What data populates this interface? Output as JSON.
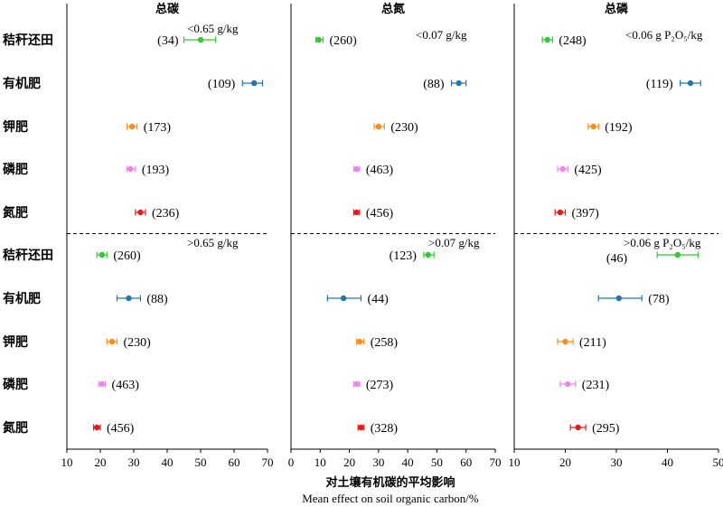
{
  "chart_data": {
    "type": "forest-plot",
    "xlabel_cn": "对土壤有机碳的平均影响",
    "xlabel_en": "Mean effect on soil organic carbon/%",
    "row_labels": [
      "秸秆还田",
      "有机肥",
      "钾肥",
      "磷肥",
      "氮肥",
      "秸秆还田",
      "有机肥",
      "钾肥",
      "磷肥",
      "氮肥"
    ],
    "colors": {
      "秸秆还田": "#2ecc2e",
      "有机肥": "#1f77b4",
      "钾肥": "#ff8c1a",
      "磷肥": "#ee82ee",
      "氮肥": "#e41a1c"
    },
    "panels": [
      {
        "title": "总碳",
        "xlim": [
          10,
          70
        ],
        "ticks": [
          10,
          20,
          30,
          40,
          50,
          60,
          70
        ],
        "threshold_top": "<0.65 g/kg",
        "threshold_bottom": ">0.65 g/kg",
        "rows": [
          {
            "mean": 50,
            "lo": 45,
            "hi": 54.5,
            "n": "(34)"
          },
          {
            "mean": 66,
            "lo": 62.5,
            "hi": 68.5,
            "n": "(109)"
          },
          {
            "mean": 29.5,
            "lo": 28,
            "hi": 31,
            "n": "(173)"
          },
          {
            "mean": 29,
            "lo": 28,
            "hi": 30.5,
            "n": "(193)"
          },
          {
            "mean": 32,
            "lo": 30.5,
            "hi": 33.5,
            "n": "(236)"
          },
          {
            "mean": 20.5,
            "lo": 19,
            "hi": 22,
            "n": "(260)"
          },
          {
            "mean": 28.5,
            "lo": 25,
            "hi": 32,
            "n": "(88)"
          },
          {
            "mean": 23.5,
            "lo": 22,
            "hi": 25,
            "n": "(230)"
          },
          {
            "mean": 20.5,
            "lo": 19.5,
            "hi": 21.5,
            "n": "(463)"
          },
          {
            "mean": 19,
            "lo": 18,
            "hi": 20,
            "n": "(456)"
          }
        ]
      },
      {
        "title": "总氮",
        "xlim": [
          0,
          70
        ],
        "ticks": [
          0,
          10,
          20,
          30,
          40,
          50,
          60,
          70
        ],
        "threshold_top": "<0.07 g/kg",
        "threshold_bottom": ">0.07 g/kg",
        "rows": [
          {
            "mean": 9.5,
            "lo": 8.5,
            "hi": 11,
            "n": "(260)"
          },
          {
            "mean": 57.5,
            "lo": 55,
            "hi": 60,
            "n": "(88)"
          },
          {
            "mean": 30,
            "lo": 28.5,
            "hi": 32,
            "n": "(230)"
          },
          {
            "mean": 22.5,
            "lo": 21.5,
            "hi": 23.5,
            "n": "(463)"
          },
          {
            "mean": 22.5,
            "lo": 21.5,
            "hi": 23.5,
            "n": "(456)"
          },
          {
            "mean": 47,
            "lo": 45.5,
            "hi": 49,
            "n": "(123)"
          },
          {
            "mean": 18,
            "lo": 12.5,
            "hi": 24,
            "n": "(44)"
          },
          {
            "mean": 23.5,
            "lo": 22.5,
            "hi": 25,
            "n": "(258)"
          },
          {
            "mean": 22.5,
            "lo": 21.5,
            "hi": 23.5,
            "n": "(273)"
          },
          {
            "mean": 24,
            "lo": 23,
            "hi": 25,
            "n": "(328)"
          }
        ]
      },
      {
        "title": "总磷",
        "xlim": [
          10,
          50
        ],
        "ticks": [
          10,
          20,
          30,
          40,
          50
        ],
        "threshold_top": "<0.06 g P₂O₅/kg",
        "threshold_bottom": ">0.06 g P₂O₅/kg",
        "rows": [
          {
            "mean": 16.5,
            "lo": 15.5,
            "hi": 17.5,
            "n": "(248)"
          },
          {
            "mean": 44.5,
            "lo": 42.5,
            "hi": 46.5,
            "n": "(119)"
          },
          {
            "mean": 25.5,
            "lo": 24.5,
            "hi": 26.5,
            "n": "(192)"
          },
          {
            "mean": 19.5,
            "lo": 18.5,
            "hi": 20.5,
            "n": "(425)"
          },
          {
            "mean": 19,
            "lo": 18,
            "hi": 20,
            "n": "(397)"
          },
          {
            "mean": 42,
            "lo": 38,
            "hi": 46,
            "n": "(46)"
          },
          {
            "mean": 30.5,
            "lo": 26.5,
            "hi": 35,
            "n": "(78)"
          },
          {
            "mean": 20,
            "lo": 18.5,
            "hi": 21.5,
            "n": "(211)"
          },
          {
            "mean": 20.5,
            "lo": 19,
            "hi": 22,
            "n": "(231)"
          },
          {
            "mean": 22.5,
            "lo": 21,
            "hi": 24,
            "n": "(295)"
          }
        ]
      }
    ]
  }
}
